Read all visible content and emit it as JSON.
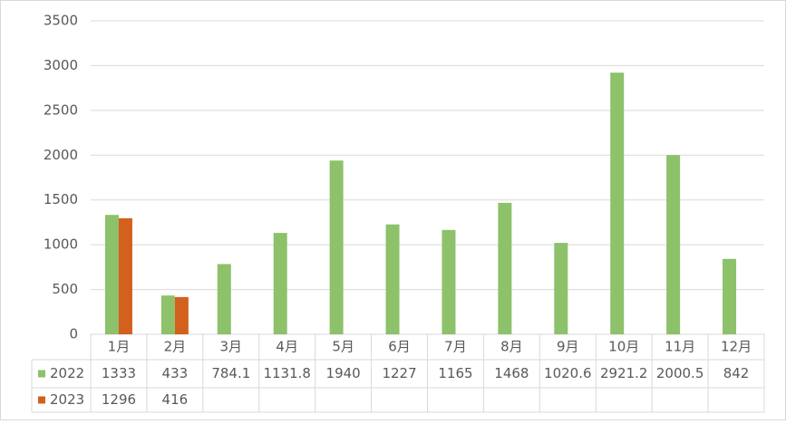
{
  "chart_data": {
    "type": "bar",
    "categories": [
      "1月",
      "2月",
      "3月",
      "4月",
      "5月",
      "6月",
      "7月",
      "8月",
      "9月",
      "10月",
      "11月",
      "12月"
    ],
    "series": [
      {
        "name": "2022",
        "color": "#8dc16a",
        "values": [
          1333,
          433,
          784.1,
          1131.8,
          1940,
          1227,
          1165,
          1468,
          1020.6,
          2921.2,
          2000.5,
          842
        ]
      },
      {
        "name": "2023",
        "color": "#d4601e",
        "values": [
          1296,
          416,
          null,
          null,
          null,
          null,
          null,
          null,
          null,
          null,
          null,
          null
        ]
      }
    ],
    "ylim": [
      0,
      3500
    ],
    "yticks": [
      0,
      500,
      1000,
      1500,
      2000,
      2500,
      3000,
      3500
    ],
    "grid": true,
    "data_table": true
  }
}
